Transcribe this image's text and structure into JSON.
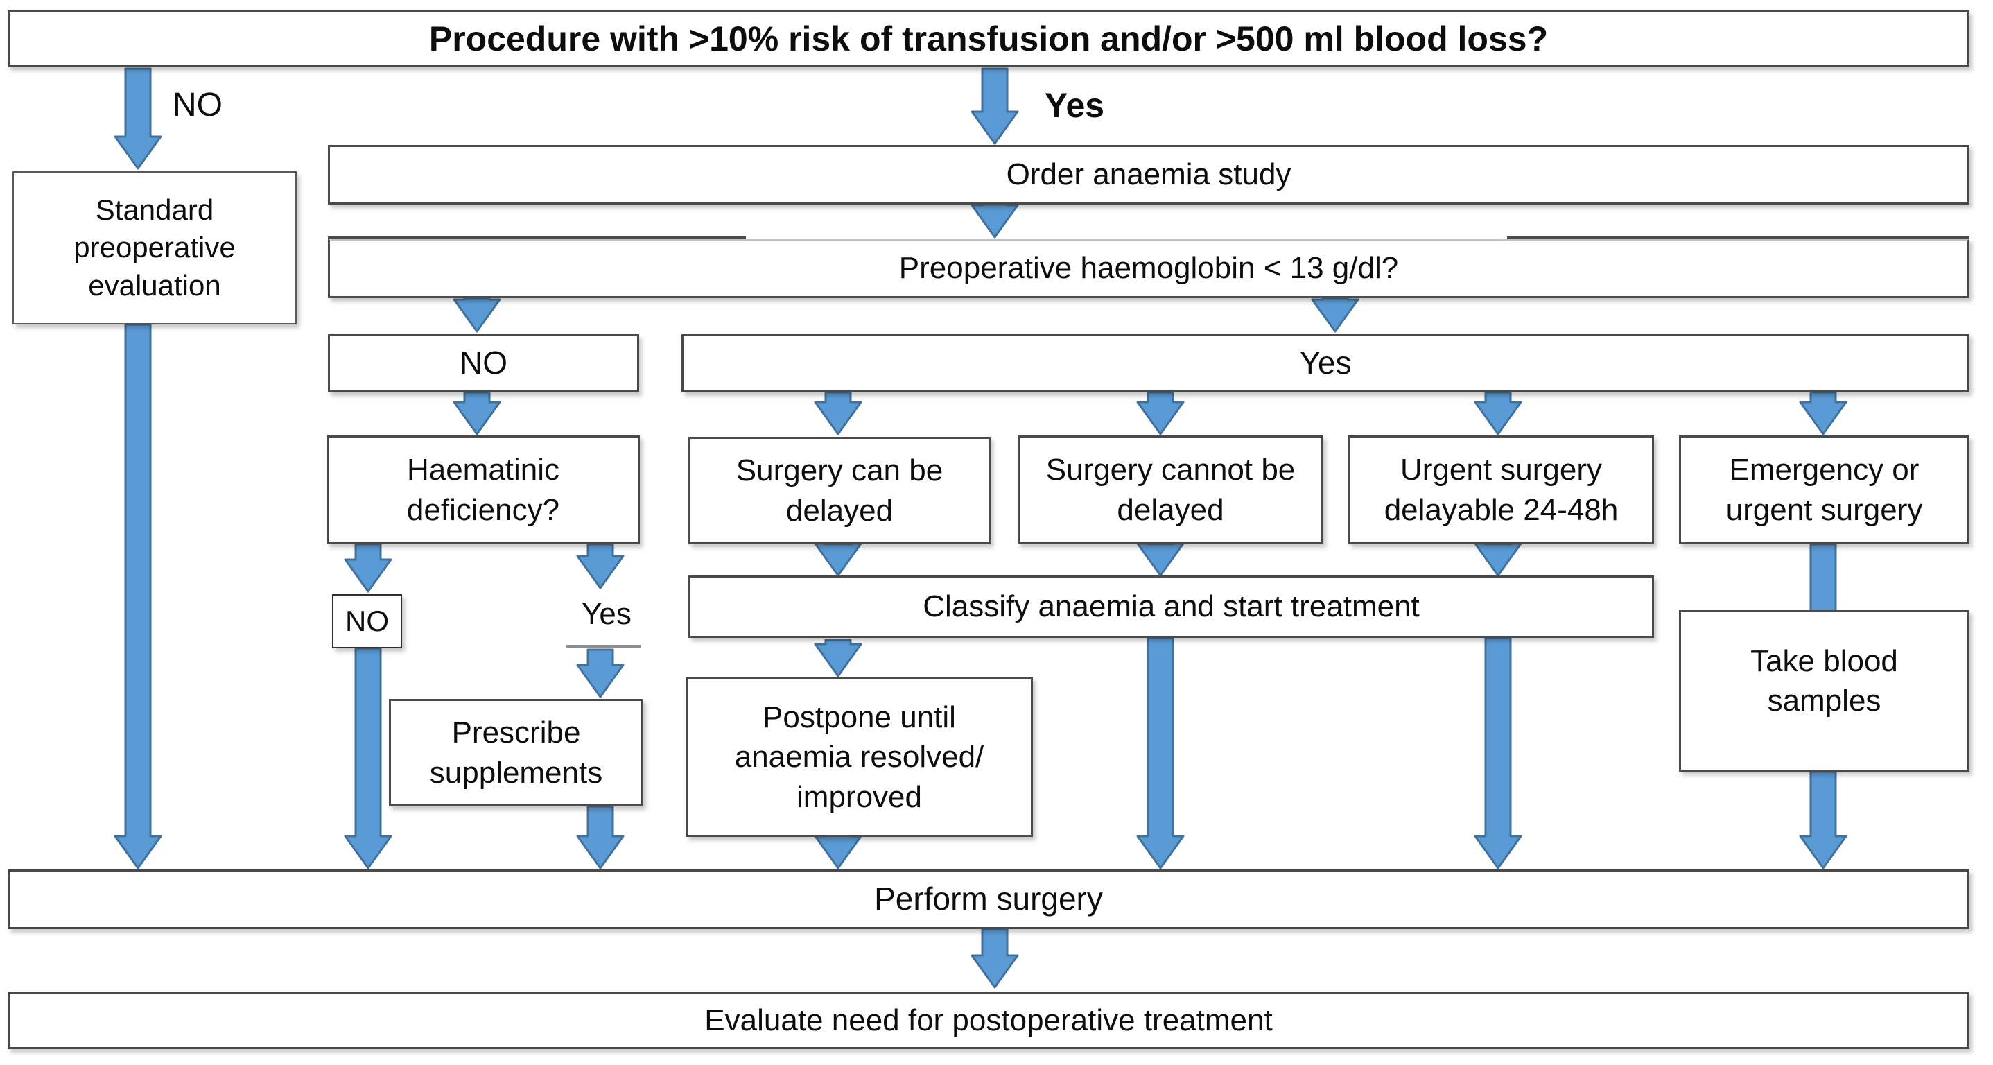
{
  "flowchart": {
    "title": "Procedure with >10% risk of transfusion and/or >500 ml blood loss?",
    "labels": {
      "no_main": "NO",
      "yes_main": "Yes",
      "hb_no": "NO",
      "hb_yes": "Yes",
      "haem_no": "NO",
      "haem_yes": "Yes"
    },
    "nodes": {
      "standard_preop": "Standard preoperative evaluation",
      "order_anaemia": "Order anaemia study",
      "preop_hb": "Preoperative haemoglobin < 13 g/dl?",
      "haematinic": "Haematinic deficiency?",
      "surgery_can": "Surgery can be delayed",
      "surgery_cannot": "Surgery cannot be delayed",
      "urgent_surgery": "Urgent surgery delayable 24-48h",
      "emergency": "Emergency or urgent surgery",
      "classify": "Classify anaemia and start treatment",
      "prescribe": "Prescribe supplements",
      "postpone": "Postpone until anaemia resolved/ improved",
      "take_blood": "Take blood samples",
      "perform": "Perform surgery",
      "evaluate": "Evaluate need for postoperative treatment"
    },
    "colors": {
      "arrow_fill": "#5b9bd5",
      "arrow_stroke": "#41719c",
      "box_border": "#4a4a4a",
      "background": "#ffffff",
      "text": "#0d0d0d"
    }
  }
}
